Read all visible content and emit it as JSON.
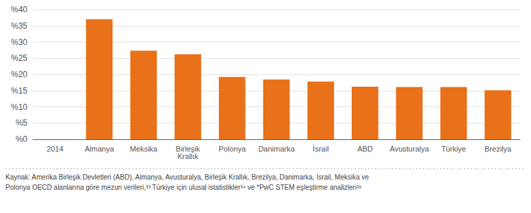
{
  "chart_data": {
    "type": "bar",
    "categories": [
      "2014",
      "Almanya",
      "Meksika",
      "Birleşik\nKrallık",
      "Polonya",
      "Danimarka",
      "İsrail",
      "ABD",
      "Avusturalya",
      "Türkiye",
      "Brezilya"
    ],
    "values": [
      null,
      37,
      27.3,
      26.2,
      19.2,
      18.4,
      17.8,
      16.2,
      16.1,
      16.1,
      15.1
    ],
    "color": "#E8711A",
    "ylim": [
      0,
      40
    ],
    "yticks": [
      {
        "value": 0,
        "label": "%0"
      },
      {
        "value": 5,
        "label": "%5"
      },
      {
        "value": 10,
        "label": "%10"
      },
      {
        "value": 15,
        "label": "%15"
      },
      {
        "value": 20,
        "label": "%20"
      },
      {
        "value": 25,
        "label": "%25"
      },
      {
        "value": 30,
        "label": "%30"
      },
      {
        "value": 35,
        "label": "%35"
      },
      {
        "value": 40,
        "label": "%40"
      }
    ],
    "grid": true,
    "annotations": [
      "Kaynak: Amerika Birleşik Devletleri (ABD), Almanya, Avusturalya, Birleşik Krallık, Brezilya, Danimarka, Israil, Meksika ve",
      "Polonya OECD alanlarına göre mezun verileri,³³ Türkiye için ulusal istatistikler³⁴ ve *PwC STEM eşleştirme analizleri³⁵"
    ]
  }
}
